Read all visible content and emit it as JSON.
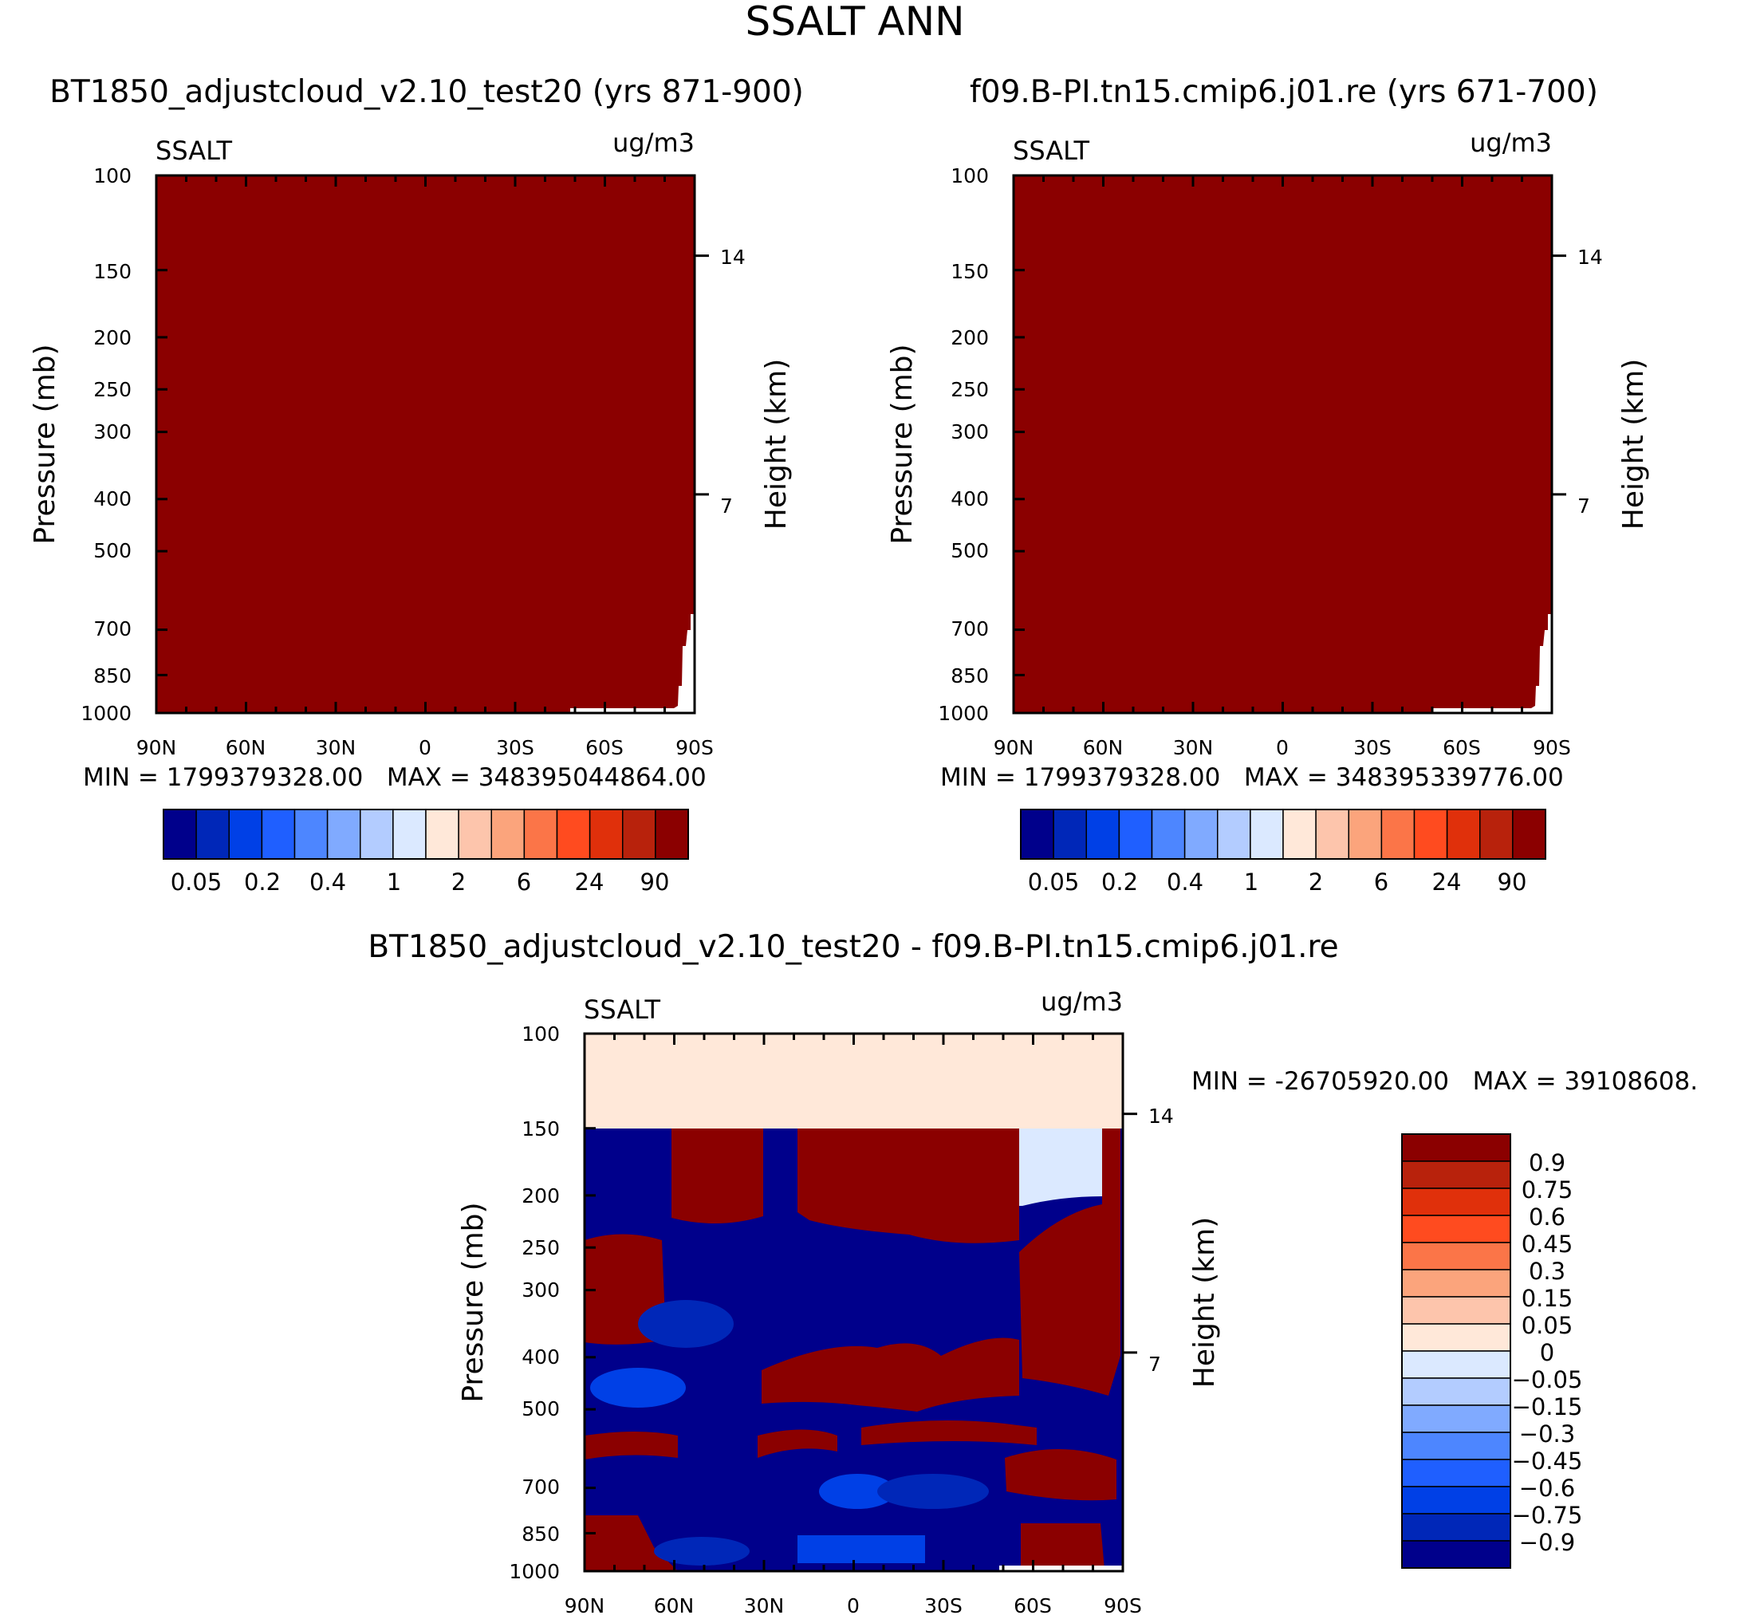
{
  "figure": {
    "title": "SSALT ANN"
  },
  "colors": {
    "top_palette": [
      "#00008b",
      "#0027b8",
      "#0040e6",
      "#1f5fff",
      "#4d86ff",
      "#80aaff",
      "#b3ccff",
      "#dbe9ff",
      "#ffe8d9",
      "#fdc5ac",
      "#fba47c",
      "#fb7548",
      "#ff4b1f",
      "#e0300b",
      "#b8220c",
      "#8b0000"
    ],
    "diff_palette": [
      "#00008b",
      "#0027b8",
      "#0040e6",
      "#1f5fff",
      "#4d86ff",
      "#80aaff",
      "#b3ccff",
      "#dbe9ff",
      "#ffe8d9",
      "#fdc5ac",
      "#fba47c",
      "#fb7548",
      "#ff4b1f",
      "#e0300b",
      "#b8220c",
      "#8b0000"
    ]
  },
  "chart_data": [
    {
      "type": "heatmap",
      "title": "BT1850_adjustcloud_v2.10_test20 (yrs 871-900)",
      "left_string": "SSALT",
      "right_string": "ug/m3",
      "xlabel": "",
      "ylabel": "Pressure (mb)",
      "y2label": "Height (km)",
      "x_ticks": [
        "90N",
        "60N",
        "30N",
        "0",
        "30S",
        "60S",
        "90S"
      ],
      "y_ticks": [
        100,
        150,
        200,
        250,
        300,
        400,
        500,
        700,
        850,
        1000
      ],
      "y2_ticks": [
        "14",
        "7"
      ],
      "y2_tick_pressures": [
        141,
        392
      ],
      "ylim": [
        1000,
        100
      ],
      "x_range": [
        -90,
        90
      ],
      "field": "uniformly above 90 (top color) except a small gap near 90S below ~650 mb",
      "min_max_text": "MIN = 1799379328.00   MAX = 348395044864.00",
      "colorbar_labels": [
        "0.05",
        "0.2",
        "0.4",
        "1",
        "2",
        "6",
        "24",
        "90"
      ]
    },
    {
      "type": "heatmap",
      "title": "f09.B-PI.tn15.cmip6.j01.re (yrs 671-700)",
      "left_string": "SSALT",
      "right_string": "ug/m3",
      "xlabel": "",
      "ylabel": "Pressure (mb)",
      "y2label": "Height (km)",
      "x_ticks": [
        "90N",
        "60N",
        "30N",
        "0",
        "30S",
        "60S",
        "90S"
      ],
      "y_ticks": [
        100,
        150,
        200,
        250,
        300,
        400,
        500,
        700,
        850,
        1000
      ],
      "y2_ticks": [
        "14",
        "7"
      ],
      "y2_tick_pressures": [
        141,
        392
      ],
      "ylim": [
        1000,
        100
      ],
      "x_range": [
        -90,
        90
      ],
      "field": "uniformly above 90 (top color) except a small gap near 90S below ~650 mb",
      "min_max_text": "MIN = 1799379328.00   MAX = 348395339776.00",
      "colorbar_labels": [
        "0.05",
        "0.2",
        "0.4",
        "1",
        "2",
        "6",
        "24",
        "90"
      ]
    },
    {
      "type": "heatmap",
      "title": "BT1850_adjustcloud_v2.10_test20 - f09.B-PI.tn15.cmip6.j01.re",
      "left_string": "SSALT",
      "right_string": "ug/m3",
      "xlabel": "",
      "ylabel": "Pressure (mb)",
      "y2label": "Height (km)",
      "x_ticks": [
        "90N",
        "60N",
        "30N",
        "0",
        "30S",
        "60S",
        "90S"
      ],
      "y_ticks": [
        100,
        150,
        200,
        250,
        300,
        400,
        500,
        700,
        850,
        1000
      ],
      "y2_ticks": [
        "14",
        "7"
      ],
      "y2_tick_pressures": [
        141,
        392
      ],
      "ylim": [
        1000,
        100
      ],
      "x_range": [
        -90,
        90
      ],
      "field": "difference field: 0-0.05 above 150 mb; alternating strong positive and negative bands below",
      "min_max_text": "MIN = -26705920.00   MAX = 39108608.",
      "colorbar_labels": [
        "0.9",
        "0.75",
        "0.6",
        "0.45",
        "0.3",
        "0.15",
        "0.05",
        "0",
        "-0.05",
        "-0.15",
        "-0.3",
        "-0.45",
        "-0.6",
        "-0.75",
        "-0.9"
      ],
      "display_labels": [
        "0.9",
        "0.75",
        "0.6",
        "0.45",
        "0.3",
        "0.15",
        "0.05",
        "0",
        "−0.05",
        "−0.15",
        "−0.3",
        "−0.45",
        "−0.6",
        "−0.75",
        "−0.9"
      ]
    }
  ]
}
